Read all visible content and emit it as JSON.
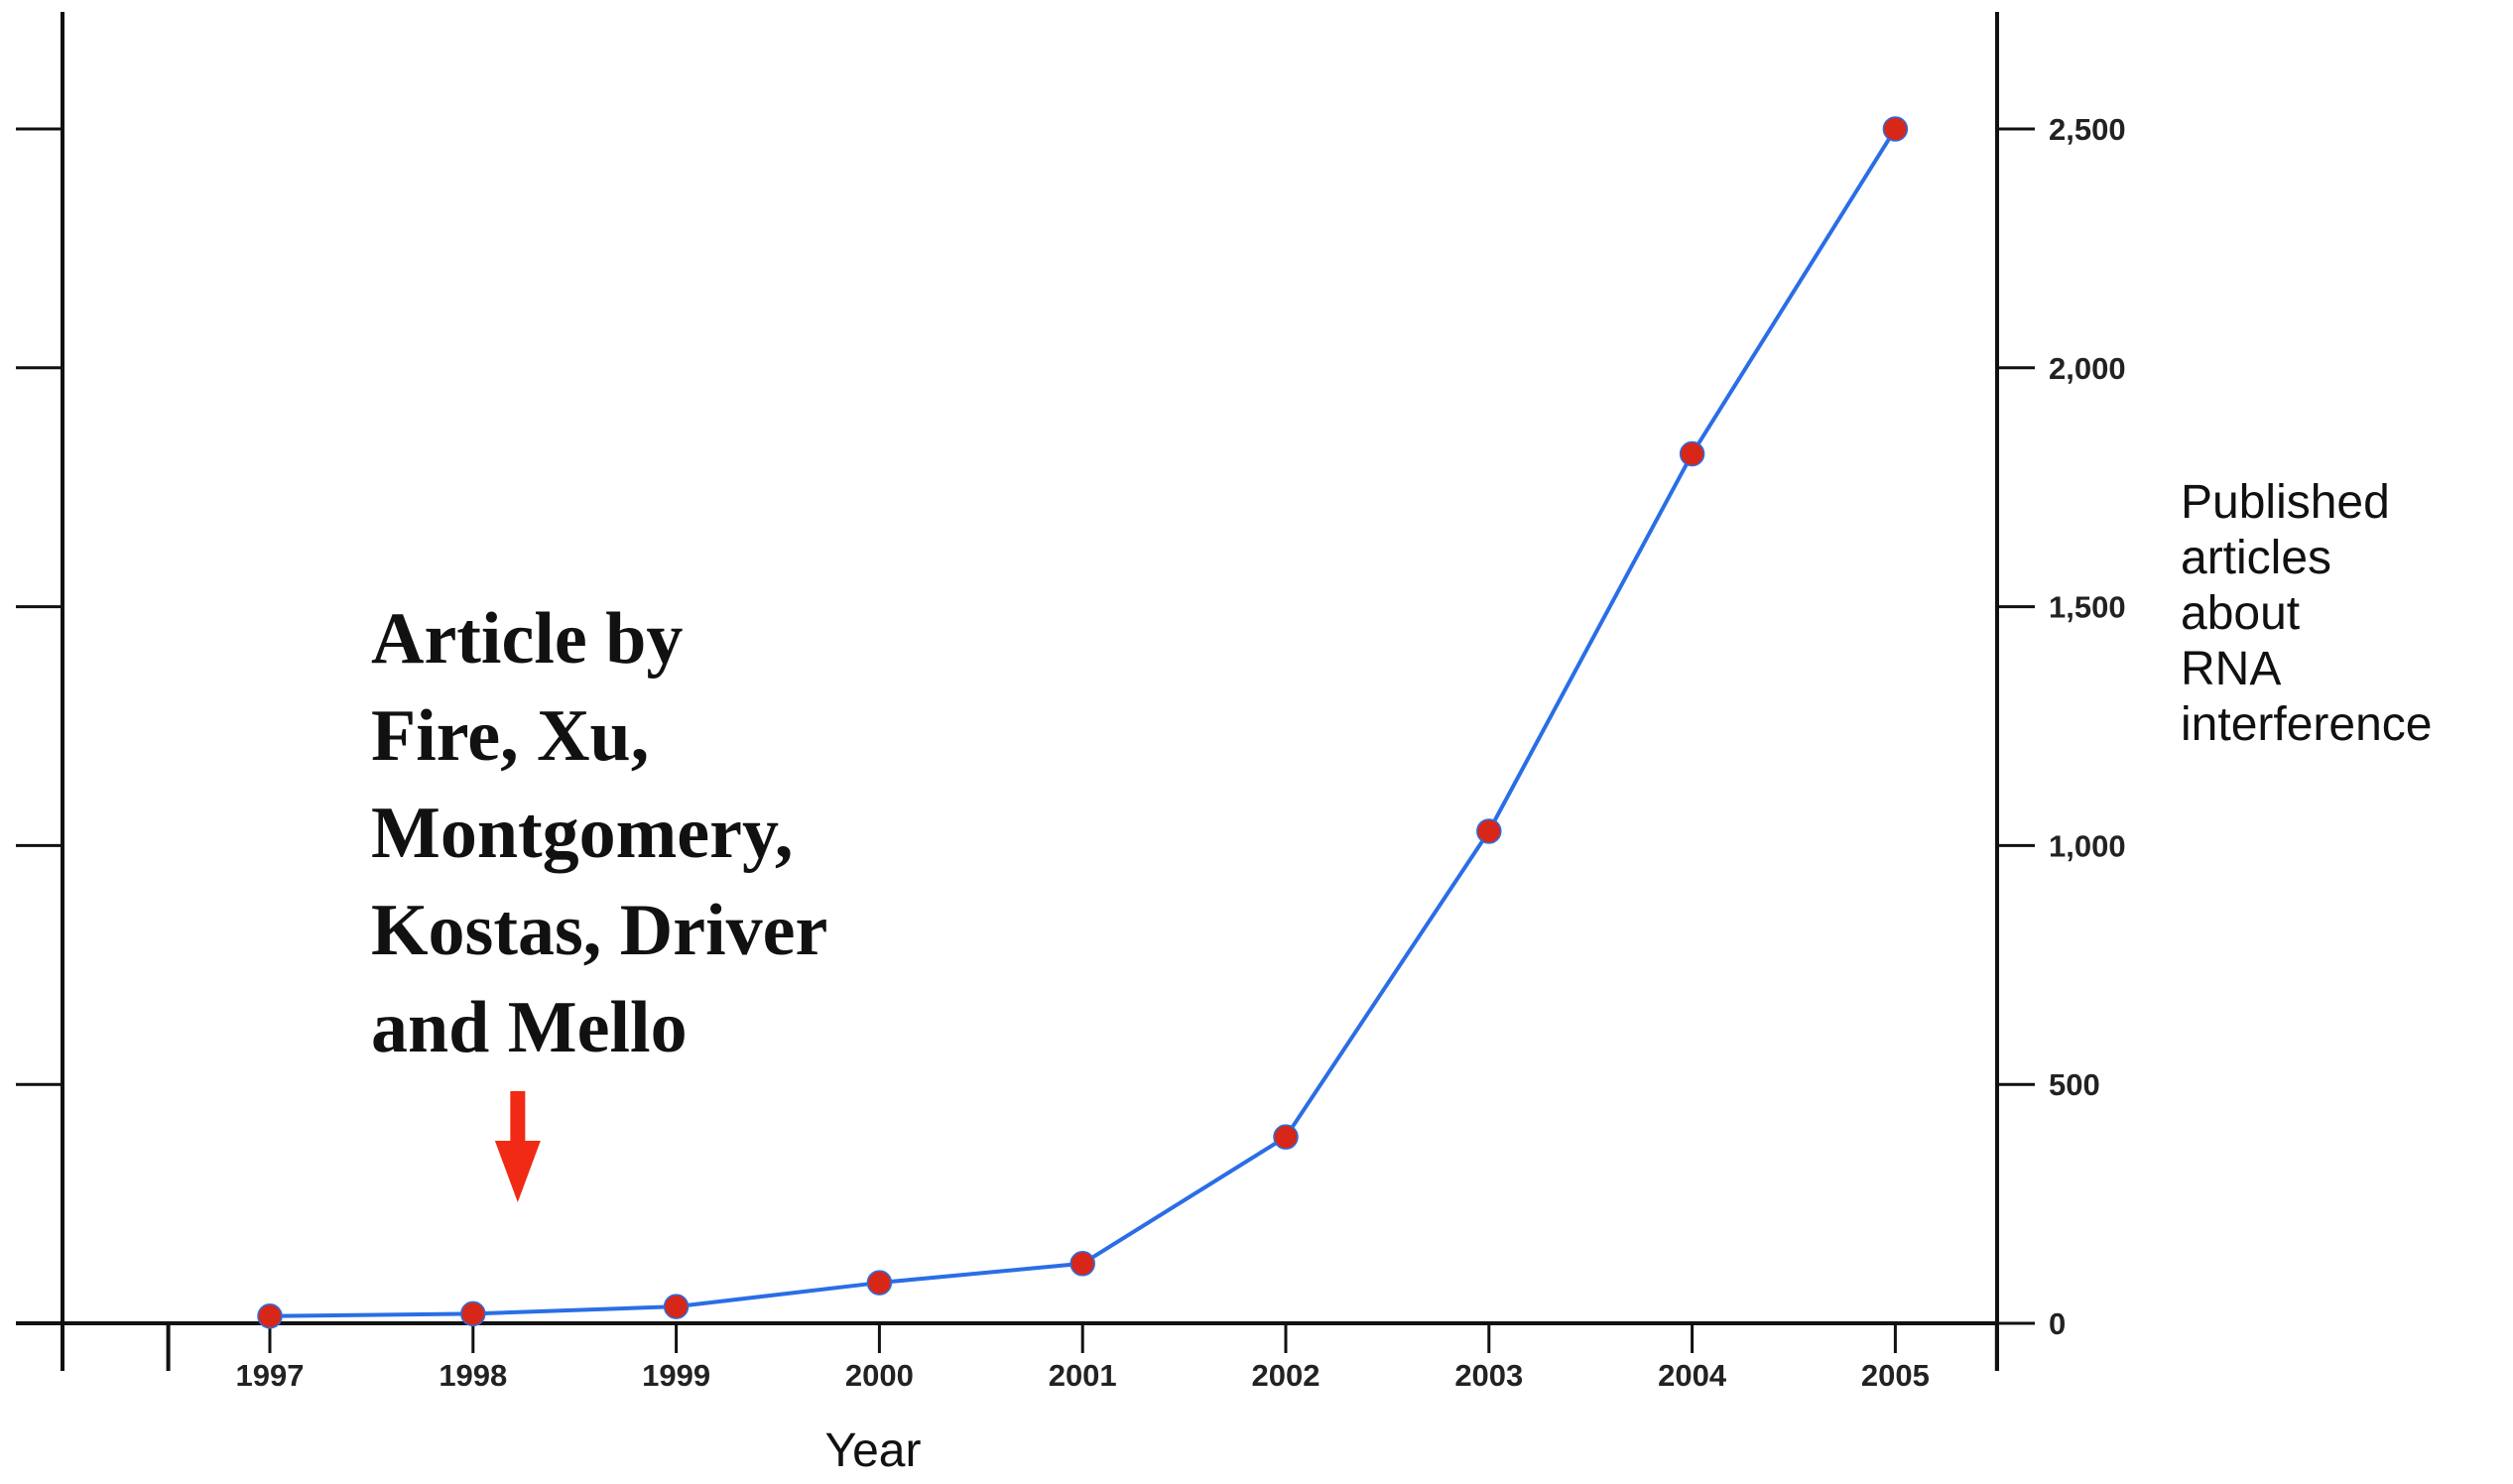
{
  "chart_data": {
    "type": "line",
    "title": "",
    "xlabel": "Year",
    "ylabel_lines": [
      "Published",
      "articles",
      "about",
      "RNA",
      "interference"
    ],
    "x": [
      "1997",
      "1998",
      "1999",
      "2000",
      "2001",
      "2002",
      "2003",
      "2004",
      "2005"
    ],
    "series": [
      {
        "values": [
          15,
          20,
          35,
          85,
          125,
          390,
          1030,
          1820,
          2500
        ]
      }
    ],
    "ylim": [
      0,
      2750
    ],
    "y_ticks": [
      0,
      500,
      1000,
      1500,
      2000,
      2500
    ],
    "y_tick_labels": [
      "0",
      "500",
      "1,000",
      "1,500",
      "2,000",
      "2,500"
    ],
    "y_axis_side": "right",
    "grid": false,
    "legend": "none",
    "colors": {
      "line": "#2a6ee6",
      "marker": "#d62718",
      "arrow": "#f02a14",
      "axis": "#111111"
    },
    "annotation": {
      "lines": [
        "Article by",
        "Fire, Xu,",
        "Montgomery,",
        "Kostas, Driver",
        "and Mello"
      ],
      "arrow_x": 1998.22,
      "icon": "down-arrow-icon"
    }
  }
}
